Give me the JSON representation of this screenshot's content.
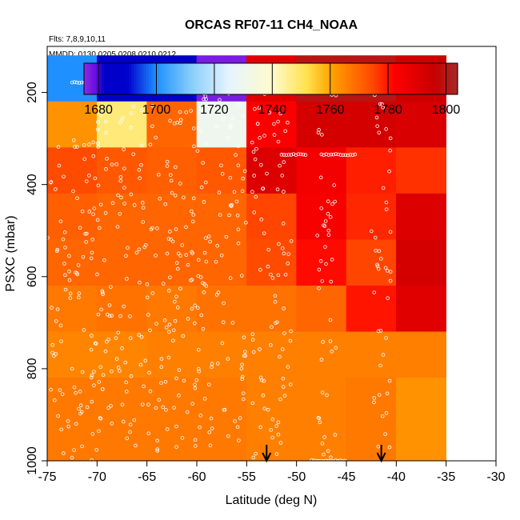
{
  "chart_data": {
    "type": "heatmap",
    "title": "ORCAS RF07-11 CH4_NOAA",
    "flights_text": "Flts: 7,8,9,10,11",
    "dates_text": "MMDD: 0130,0205,0208,0210,0212",
    "xlabel": "Latitude (deg N)",
    "ylabel": "PSXC (mbar)",
    "xlim": [
      -75,
      -30
    ],
    "ylim": [
      1000,
      100
    ],
    "x_ticks": [
      -75,
      -70,
      -65,
      -60,
      -55,
      -50,
      -45,
      -40,
      -35,
      -30
    ],
    "y_ticks": [
      200,
      400,
      600,
      800,
      1000
    ],
    "colorbar": {
      "range": [
        1675,
        1804
      ],
      "ticks": [
        1680,
        1700,
        1720,
        1740,
        1760,
        1780,
        1800
      ],
      "stops": [
        {
          "value": 1675,
          "color": "#8a2be2"
        },
        {
          "value": 1679,
          "color": "#6a0de0"
        },
        {
          "value": 1682,
          "color": "#0000c8"
        },
        {
          "value": 1690,
          "color": "#0000cd"
        },
        {
          "value": 1700,
          "color": "#1e90ff"
        },
        {
          "value": 1712,
          "color": "#87cefa"
        },
        {
          "value": 1725,
          "color": "#e6f4ff"
        },
        {
          "value": 1740,
          "color": "#fffacd"
        },
        {
          "value": 1752,
          "color": "#ffe14d"
        },
        {
          "value": 1760,
          "color": "#ffa500"
        },
        {
          "value": 1775,
          "color": "#ff4500"
        },
        {
          "value": 1782,
          "color": "#ff0000"
        },
        {
          "value": 1796,
          "color": "#c80000"
        },
        {
          "value": 1804,
          "color": "#a52a2a"
        }
      ]
    },
    "lat_bins": [
      [
        -75,
        -70
      ],
      [
        -70,
        -65
      ],
      [
        -65,
        -60
      ],
      [
        -60,
        -55
      ],
      [
        -55,
        -50
      ],
      [
        -50,
        -45
      ],
      [
        -45,
        -40
      ],
      [
        -40,
        -35
      ]
    ],
    "cells": [
      {
        "p": [
          120,
          220
        ],
        "values": [
          1700,
          1684,
          1684,
          1677,
          1790,
          1800,
          1800,
          1795
        ]
      },
      {
        "p": [
          220,
          320
        ],
        "values": [
          1763,
          1748,
          1770,
          1730,
          1783,
          1793,
          1793,
          1792
        ]
      },
      {
        "p": [
          320,
          420
        ],
        "values": [
          1774,
          1772,
          1771,
          1772,
          1791,
          1785,
          1779,
          1777
        ]
      },
      {
        "p": [
          420,
          520
        ],
        "values": [
          1771,
          1770,
          1770,
          1770,
          1775,
          1784,
          1778,
          1791
        ]
      },
      {
        "p": [
          520,
          620
        ],
        "values": [
          1770,
          1770,
          1770,
          1770,
          1774,
          1781,
          1775,
          1793
        ]
      },
      {
        "p": [
          620,
          720
        ],
        "values": [
          1767,
          1768,
          1767,
          1768,
          1768,
          1770,
          1780,
          1790
        ]
      },
      {
        "p": [
          720,
          820
        ],
        "values": [
          1765,
          1765,
          1766,
          1766,
          1766,
          1766,
          1766,
          1766
        ]
      },
      {
        "p": [
          820,
          1000
        ],
        "values": [
          1767,
          1767,
          1767,
          1767,
          1766,
          1766,
          1767,
          1763
        ]
      }
    ],
    "sample_tracks": [
      {
        "type": "line",
        "lat": [
          -72.5,
          -56.0
        ],
        "p": 178
      },
      {
        "type": "line",
        "lat": [
          -50.5,
          -49.0
        ],
        "p": 180
      },
      {
        "type": "line",
        "lat": [
          -47.5,
          -46.5
        ],
        "p": 185
      },
      {
        "type": "line",
        "lat": [
          -38.5,
          -34.8
        ],
        "p": 185
      },
      {
        "type": "line",
        "lat": [
          -51.5,
          -49.0
        ],
        "p": 335
      },
      {
        "type": "line",
        "lat": [
          -47.5,
          -44.0
        ],
        "p": 335
      },
      {
        "type": "line",
        "lat": [
          -48.5,
          -45.0
        ],
        "p": 1000
      },
      {
        "type": "column",
        "lat": [
          -48.0,
          -46.0
        ],
        "p": [
          180,
          1000
        ]
      },
      {
        "type": "column",
        "lat": [
          -54.5,
          -50.5
        ],
        "p": [
          200,
          1000
        ]
      },
      {
        "type": "column",
        "lat": [
          -42.5,
          -40.5
        ],
        "p": [
          200,
          1000
        ]
      },
      {
        "type": "column",
        "lat": [
          -75.0,
          -70.0
        ],
        "p": [
          300,
          1000
        ]
      },
      {
        "type": "column",
        "lat": [
          -70.0,
          -65.0
        ],
        "p": [
          230,
          1000
        ]
      },
      {
        "type": "column",
        "lat": [
          -65.0,
          -60.0
        ],
        "p": [
          200,
          1000
        ]
      },
      {
        "type": "column",
        "lat": [
          -60.0,
          -55.0
        ],
        "p": [
          190,
          970
        ]
      }
    ],
    "arrows_lat": [
      -53.0,
      -41.5
    ]
  }
}
